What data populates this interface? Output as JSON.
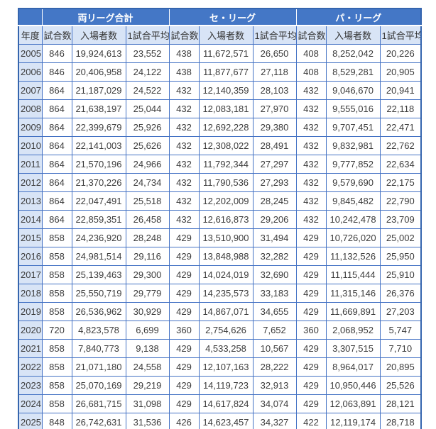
{
  "colors": {
    "header_bg": "#4477C6",
    "header_text": "#FFFFFF",
    "subheader_bg": "#D8E4F6",
    "border": "#4472C4",
    "outer_border": "#3565AE",
    "cell_text": "#3C3C3C"
  },
  "chart_data": {
    "type": "table",
    "column_groups": [
      "両リーグ合計",
      "セ・リーグ",
      "パ・リーグ"
    ],
    "column_group_spans": [
      3,
      3,
      3
    ],
    "columns": [
      "年度",
      "試合数",
      "入場者数",
      "1試合平均",
      "試合数",
      "入場者数",
      "1試合平均",
      "試合数",
      "入場者数",
      "1試合平均"
    ],
    "rows": [
      [
        "2005",
        "846",
        "19,924,613",
        "23,552",
        "438",
        "11,672,571",
        "26,650",
        "408",
        "8,252,042",
        "20,226"
      ],
      [
        "2006",
        "846",
        "20,406,958",
        "24,122",
        "438",
        "11,877,677",
        "27,118",
        "408",
        "8,529,281",
        "20,905"
      ],
      [
        "2007",
        "864",
        "21,187,029",
        "24,522",
        "432",
        "12,140,359",
        "28,103",
        "432",
        "9,046,670",
        "20,941"
      ],
      [
        "2008",
        "864",
        "21,638,197",
        "25,044",
        "432",
        "12,083,181",
        "27,970",
        "432",
        "9,555,016",
        "22,118"
      ],
      [
        "2009",
        "864",
        "22,399,679",
        "25,926",
        "432",
        "12,692,228",
        "29,380",
        "432",
        "9,707,451",
        "22,471"
      ],
      [
        "2010",
        "864",
        "22,141,003",
        "25,626",
        "432",
        "12,308,022",
        "28,491",
        "432",
        "9,832,981",
        "22,762"
      ],
      [
        "2011",
        "864",
        "21,570,196",
        "24,966",
        "432",
        "11,792,344",
        "27,297",
        "432",
        "9,777,852",
        "22,634"
      ],
      [
        "2012",
        "864",
        "21,370,226",
        "24,734",
        "432",
        "11,790,536",
        "27,293",
        "432",
        "9,579,690",
        "22,175"
      ],
      [
        "2013",
        "864",
        "22,047,491",
        "25,518",
        "432",
        "12,202,009",
        "28,245",
        "432",
        "9,845,482",
        "22,790"
      ],
      [
        "2014",
        "864",
        "22,859,351",
        "26,458",
        "432",
        "12,616,873",
        "29,206",
        "432",
        "10,242,478",
        "23,709"
      ],
      [
        "2015",
        "858",
        "24,236,920",
        "28,248",
        "429",
        "13,510,900",
        "31,494",
        "429",
        "10,726,020",
        "25,002"
      ],
      [
        "2016",
        "858",
        "24,981,514",
        "29,116",
        "429",
        "13,848,988",
        "32,282",
        "429",
        "11,132,526",
        "25,950"
      ],
      [
        "2017",
        "858",
        "25,139,463",
        "29,300",
        "429",
        "14,024,019",
        "32,690",
        "429",
        "11,115,444",
        "25,910"
      ],
      [
        "2018",
        "858",
        "25,550,719",
        "29,779",
        "429",
        "14,235,573",
        "33,183",
        "429",
        "11,315,146",
        "26,376"
      ],
      [
        "2019",
        "858",
        "26,536,962",
        "30,929",
        "429",
        "14,867,071",
        "34,655",
        "429",
        "11,669,891",
        "27,203"
      ],
      [
        "2020",
        "720",
        "4,823,578",
        "6,699",
        "360",
        "2,754,626",
        "7,652",
        "360",
        "2,068,952",
        "5,747"
      ],
      [
        "2021",
        "858",
        "7,840,773",
        "9,138",
        "429",
        "4,533,258",
        "10,567",
        "429",
        "3,307,515",
        "7,710"
      ],
      [
        "2022",
        "858",
        "21,071,180",
        "24,558",
        "429",
        "12,107,163",
        "28,222",
        "429",
        "8,964,017",
        "20,895"
      ],
      [
        "2023",
        "858",
        "25,070,169",
        "29,219",
        "429",
        "14,119,723",
        "32,913",
        "429",
        "10,950,446",
        "25,526"
      ],
      [
        "2024",
        "858",
        "26,681,715",
        "31,098",
        "429",
        "14,617,824",
        "34,074",
        "429",
        "12,063,891",
        "28,121"
      ],
      [
        "2025",
        "848",
        "26,742,631",
        "31,536",
        "426",
        "14,623,457",
        "34,327",
        "422",
        "12,119,174",
        "28,718"
      ]
    ]
  }
}
